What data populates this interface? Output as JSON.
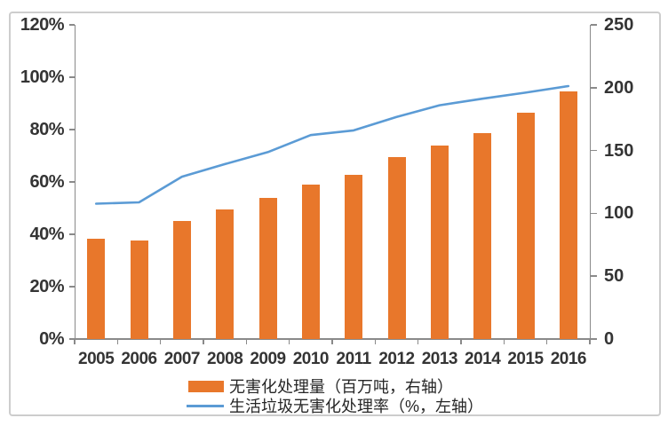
{
  "chart_data": {
    "type": "bar",
    "subtype": "combo-bar-line-dual-axis",
    "title": "",
    "categories": [
      "2005",
      "2006",
      "2007",
      "2008",
      "2009",
      "2010",
      "2011",
      "2012",
      "2013",
      "2014",
      "2015",
      "2016"
    ],
    "series": [
      {
        "name": "无害化处理量（百万吨，右轴）",
        "type": "bar",
        "axis": "right",
        "color": "#E8772B",
        "values": [
          80,
          78.5,
          94,
          103,
          112,
          123,
          131,
          145,
          154,
          164,
          180,
          197
        ]
      },
      {
        "name": "生活垃圾无害化处理率（%，左轴）",
        "type": "line",
        "axis": "left",
        "color": "#5B9BD5",
        "values": [
          51.7,
          52.2,
          62.0,
          66.8,
          71.4,
          77.9,
          79.7,
          84.8,
          89.3,
          91.8,
          94.1,
          96.6
        ]
      }
    ],
    "left_axis": {
      "min": 0,
      "max": 120,
      "step": 20,
      "unit": "%",
      "tick_labels": [
        "0%",
        "20%",
        "40%",
        "60%",
        "80%",
        "100%",
        "120%"
      ]
    },
    "right_axis": {
      "min": 0,
      "max": 250,
      "step": 50,
      "unit": "",
      "tick_labels": [
        "0",
        "50",
        "100",
        "150",
        "200",
        "250"
      ]
    },
    "xlabel": "",
    "ylabel": "",
    "grid": false,
    "legend_position": "bottom",
    "axis_color": "#8A8A8A",
    "text_color": "#343434"
  }
}
